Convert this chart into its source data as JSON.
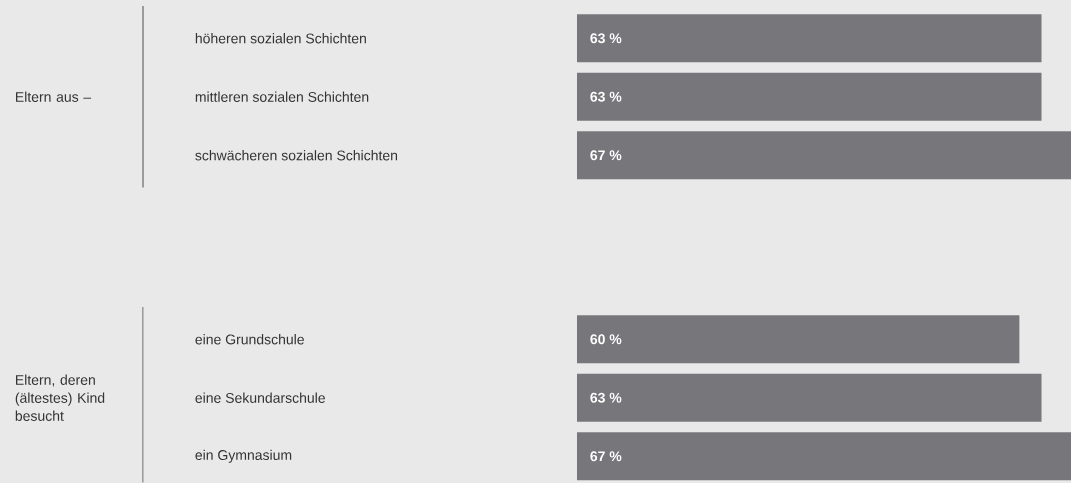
{
  "chart_data": [
    {
      "type": "bar",
      "orientation": "horizontal",
      "ylabel": "Eltern aus –",
      "categories": [
        "höheren sozialen Schichten",
        "mittleren sozialen Schichten",
        "schwächeren sozialen Schichten"
      ],
      "values": [
        63,
        63,
        67
      ],
      "value_labels": [
        "63 %",
        "63 %",
        "67 %"
      ],
      "color": "#77777b"
    },
    {
      "type": "bar",
      "orientation": "horizontal",
      "ylabel": "Eltern, deren (ältestes) Kind besucht",
      "categories": [
        "eine Grundschule",
        "eine Sekundarschule",
        "ein Gymnasium"
      ],
      "values": [
        60,
        63,
        67
      ],
      "value_labels": [
        "60 %",
        "63 %",
        "67 %"
      ],
      "color": "#77777b"
    }
  ]
}
